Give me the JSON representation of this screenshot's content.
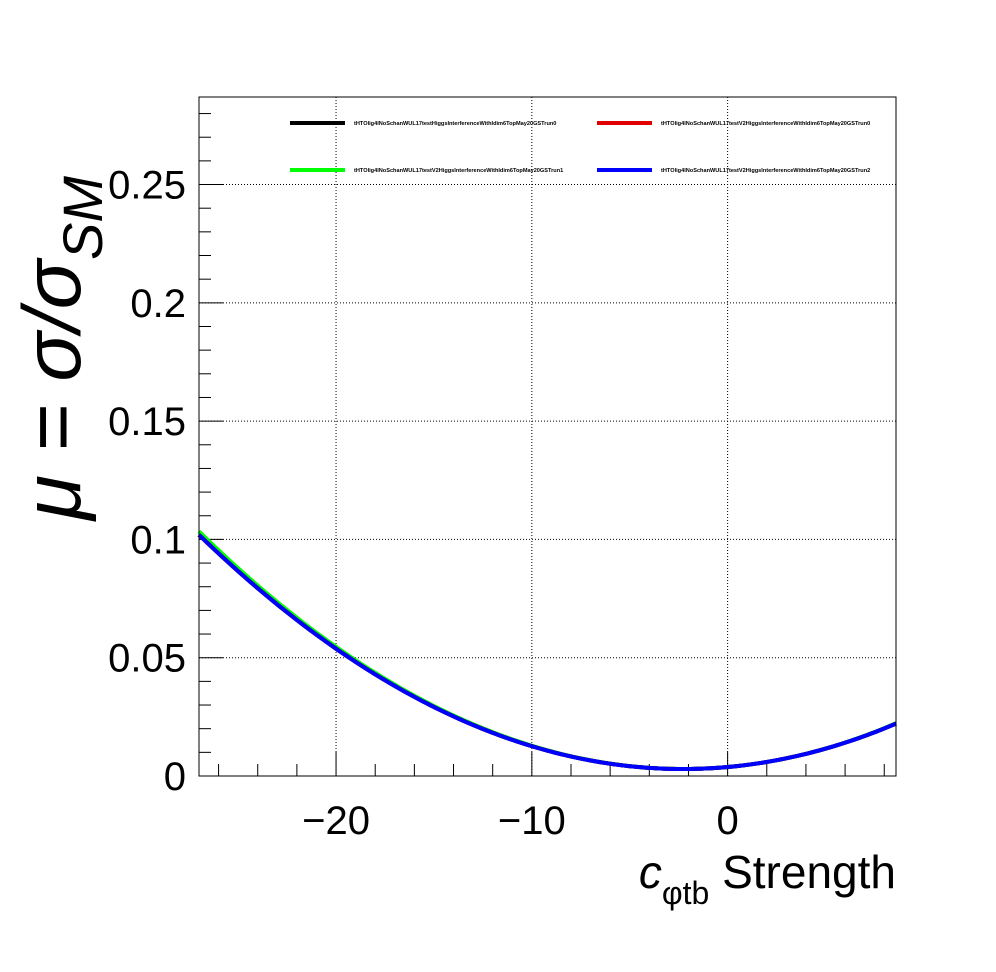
{
  "chart_data": {
    "type": "line",
    "title": "",
    "xlabel": {
      "c": "c",
      "sub": "φtb",
      "rest": " Strength"
    },
    "ylabel": {
      "mu": "μ = σ/σ",
      "sub": "SM"
    },
    "xlim": [
      -27,
      8.6
    ],
    "ylim": [
      0,
      0.287
    ],
    "xticks": [
      -20,
      -10,
      0
    ],
    "xtick_labels": [
      "−20",
      "−10",
      "0"
    ],
    "yticks": [
      0,
      0.05,
      0.1,
      0.15,
      0.2,
      0.25
    ],
    "ytick_labels": [
      "0",
      "0.05",
      "0.1",
      "0.15",
      "0.2",
      "0.25"
    ],
    "grid": true,
    "legend_position": "top",
    "series": [
      {
        "name": "tHTOlig4lNoSchanWUL17testHiggsInterferenceWithIdim6TopMay20GSTrun0",
        "color": "#000000",
        "a": 0.0038,
        "b": 0.00074,
        "c": 0.000162
      },
      {
        "name": "tHTOlig4lNoSchanWUL17testV2HiggsInterferenceWithIdim6TopMay20GSTrun0",
        "color": "#e00000",
        "a": 0.0038,
        "b": 0.00074,
        "c": 0.000162
      },
      {
        "name": "tHTOlig4lNoSchanWUL17testV2HiggsInterferenceWithIdim6TopMay20GSTrun1",
        "color": "#00ff00",
        "a": 0.0038,
        "b": 0.00074,
        "c": 0.000164
      },
      {
        "name": "tHTOlig4lNoSchanWUL17testV2HiggsInterferenceWithIdim6TopMay20GSTrun2",
        "color": "#0000ff",
        "a": 0.0038,
        "b": 0.00074,
        "c": 0.000162
      }
    ]
  }
}
